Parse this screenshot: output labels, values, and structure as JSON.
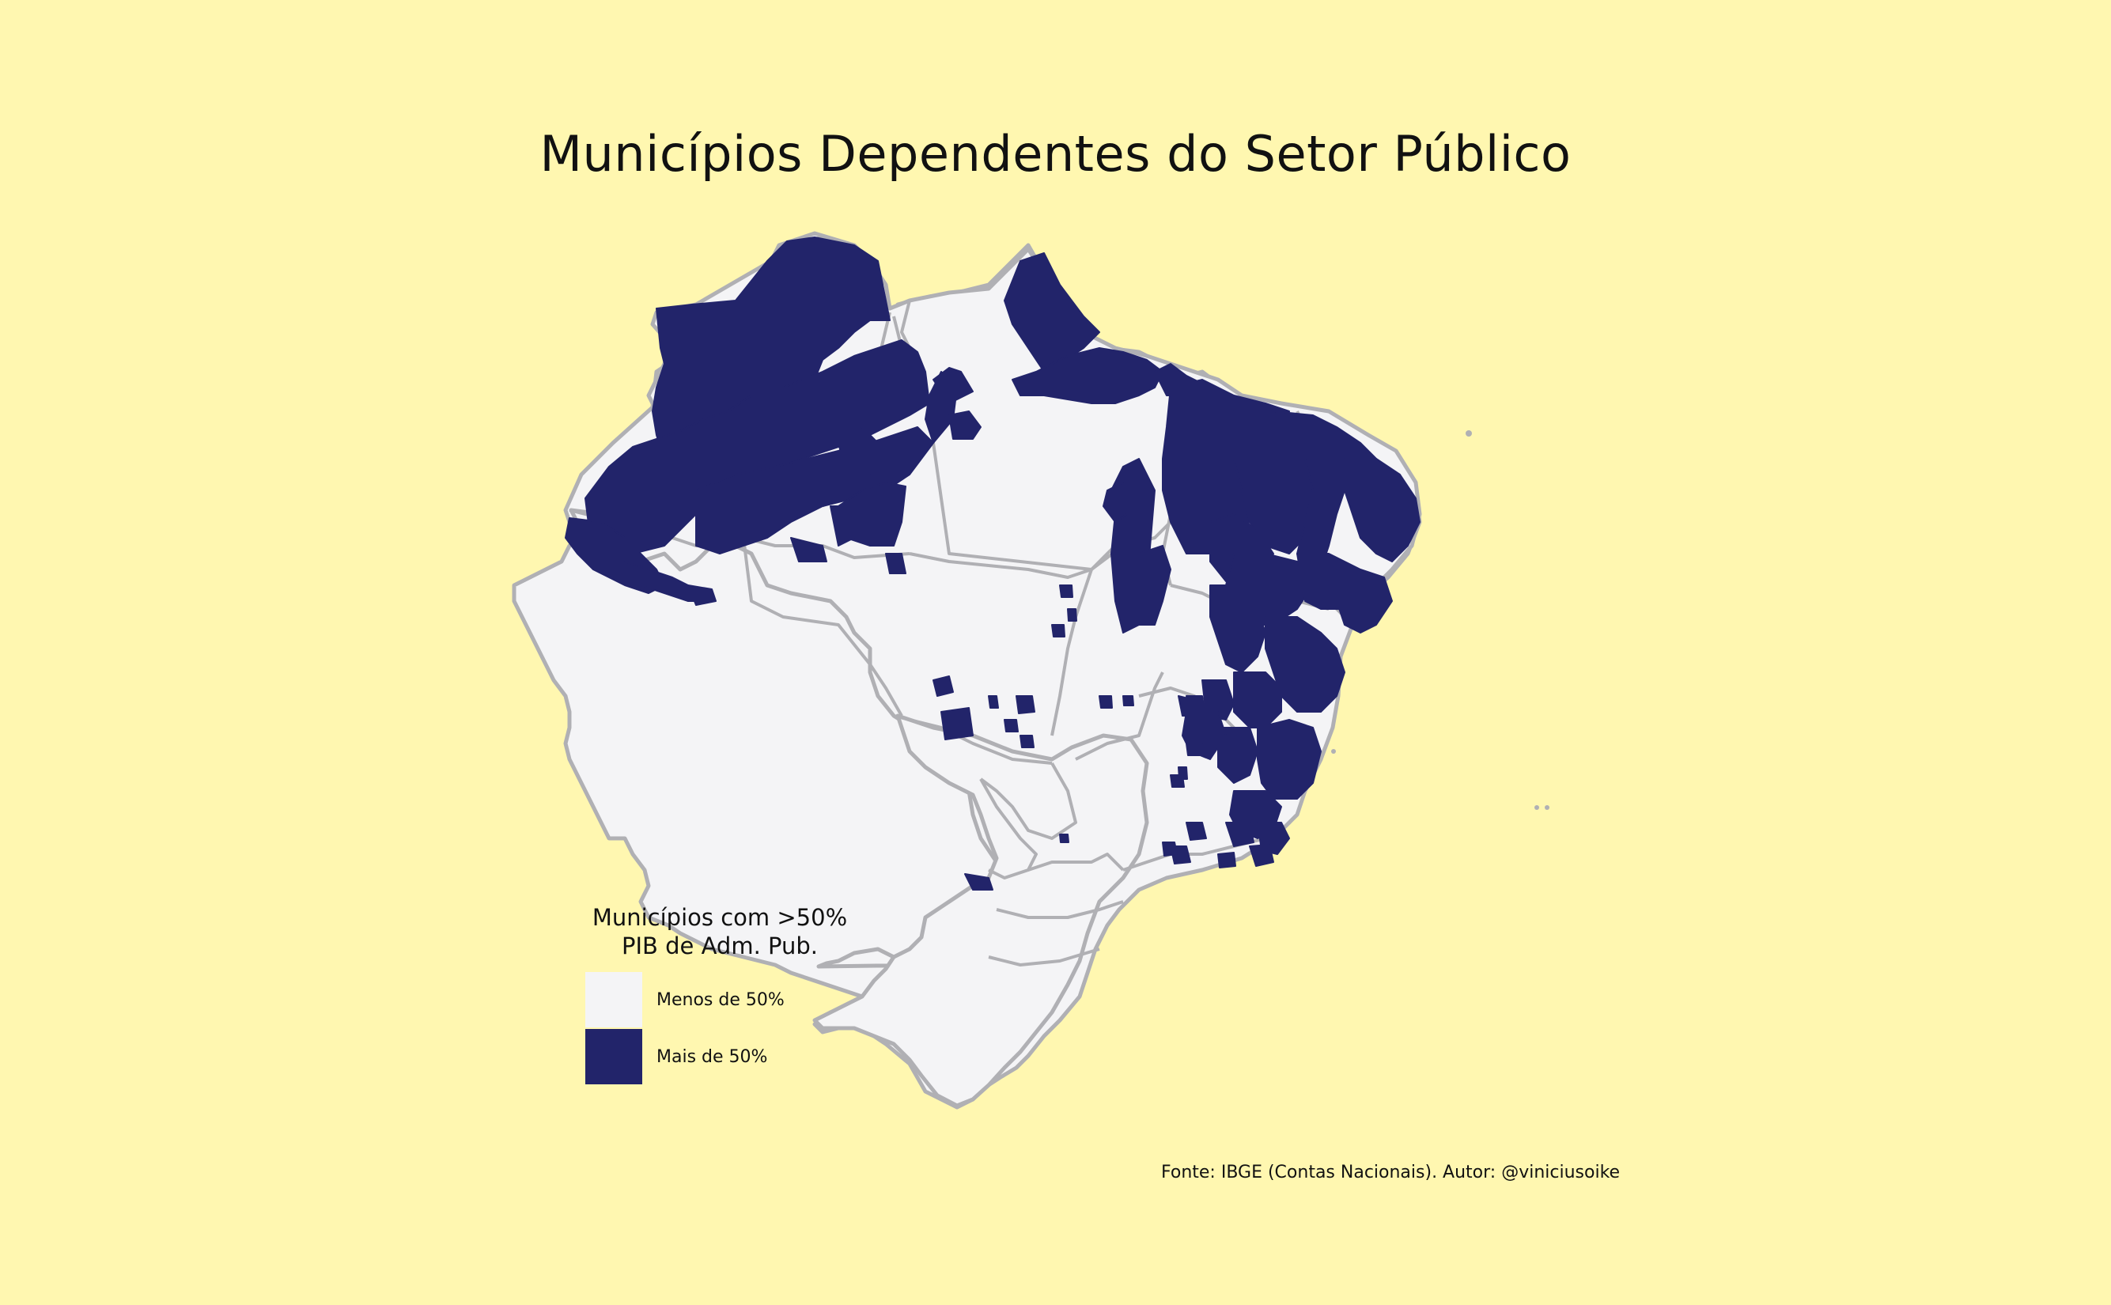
{
  "title": "Municípios Dependentes do Setor Público",
  "legend": {
    "title_line1": "Municípios com >50%",
    "title_line2": "PIB de Adm. Pub.",
    "items": [
      {
        "label": "Menos de 50%",
        "color": "#f4f4f6"
      },
      {
        "label": "Mais de 50%",
        "color": "#22246a"
      }
    ]
  },
  "caption": "Fonte: IBGE (Contas Nacionais). Autor: @viniciusoike",
  "colors": {
    "background": "#fff7b0",
    "land": "#f4f4f6",
    "dependent": "#22246a",
    "border": "#b0b0b4"
  }
}
